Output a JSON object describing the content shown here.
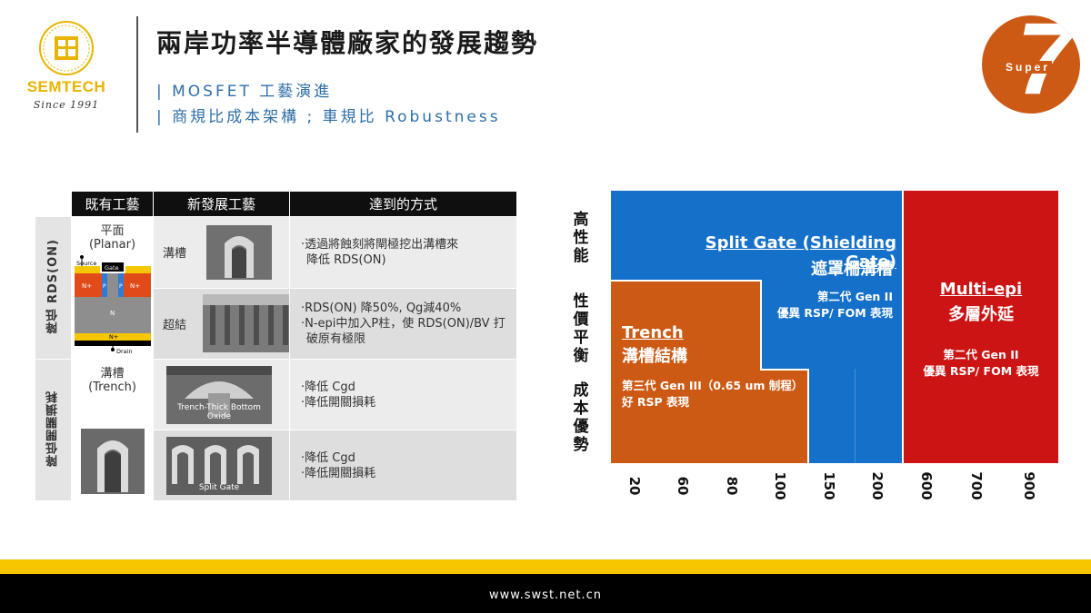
{
  "header": {
    "logo_brand": "SEMTECH",
    "logo_since": "Since 1991",
    "title": "兩岸功率半導體廠家的發展趨勢",
    "subtitle1": "| MOSFET 工藝演進",
    "subtitle2": "| 商規比成本架構 ; 車規比 Robustness",
    "badge_number": "7",
    "badge_word": "Super",
    "colors": {
      "title": "#1a1a1a",
      "subtitle": "#2e6fa8",
      "badge": "#cc5a14",
      "logo": "#e8b400"
    }
  },
  "table": {
    "headers": [
      "既有工藝",
      "新發展工藝",
      "達到的方式"
    ],
    "categories": [
      "降低 RDS(ON)",
      "降低開關損耗"
    ],
    "planar": {
      "name": "平面",
      "sub": "(Planar)",
      "source": "Source",
      "gate": "Gate",
      "np": "N+",
      "p": "P",
      "n": "N",
      "nb": "N+",
      "drain": "Drain"
    },
    "trench_exist": {
      "name": "溝槽",
      "sub": "(Trench)"
    },
    "rows": [
      {
        "new": "溝槽",
        "method1": "·透過將蝕刻將閘極挖出溝槽來",
        "method2": "降低 RDS(ON)",
        "method3": ""
      },
      {
        "new": "超結",
        "method1": "·RDS(ON) 降50%, Qg減40%",
        "method2": "·N-epi中加入P柱，使 RDS(ON)/BV 打",
        "method3": "破原有極限"
      },
      {
        "new": "",
        "image_label": "Trench-Thick Bottom Oxide",
        "method1": "·降低 Cgd",
        "method2": "·降低開關損耗",
        "method3": ""
      },
      {
        "new": "",
        "image_label": "Split Gate",
        "method1": "·降低 Cgd",
        "method2": "·降低開關損耗",
        "method3": ""
      }
    ]
  },
  "chart": {
    "y_label_top": "高性能",
    "y_label_mid": "性價平衡",
    "y_label_bot": "成本優勢",
    "x_ticks": [
      "20",
      "60",
      "80",
      "100",
      "150",
      "200",
      "600",
      "700",
      "900"
    ],
    "blocks": {
      "split_gate": {
        "title": "Split Gate (Shielding Gate)",
        "subtitle": "遮罩柵溝槽",
        "gen": "第二代 Gen II",
        "desc": "優異 RSP/ FOM 表現",
        "color": "#1470c8"
      },
      "trench": {
        "title": "Trench",
        "subtitle": "溝槽結構",
        "gen": "第三代 Gen III（0.65 um 制程）",
        "desc": "好 RSP 表現",
        "color": "#cc5a14"
      },
      "multi_epi": {
        "title": "Multi-epi",
        "subtitle": "多層外延",
        "gen": "第二代 Gen II",
        "desc": "優異 RSP/ FOM 表現",
        "color": "#cc1414"
      }
    }
  },
  "footer": {
    "url": "www.swst.net.cn",
    "colors": {
      "stripe": "#f6c600",
      "bar": "#000000"
    }
  }
}
